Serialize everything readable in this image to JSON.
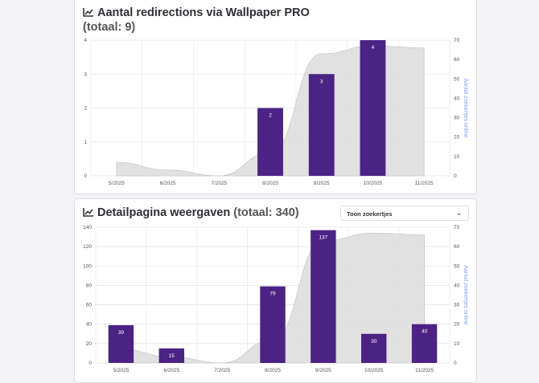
{
  "charts": [
    {
      "title": "Aantal redirections via Wallpaper PRO",
      "subtitle": "(totaal: 9)"
    },
    {
      "title": "Detailpagina weergaven",
      "subtitle": "(totaal: 340)",
      "dropdown_label": "Toon zoekertjes"
    }
  ],
  "chart_data": [
    {
      "type": "bar",
      "title": "Aantal redirections via Wallpaper PRO (totaal: 9)",
      "categories": [
        "5/2025",
        "6/2025",
        "7/2025",
        "8/2025",
        "9/2025",
        "10/2025",
        "11/2025"
      ],
      "values": [
        0,
        0,
        0,
        2,
        3,
        4,
        0
      ],
      "ylim": [
        0,
        4
      ],
      "yticks": [
        0,
        1,
        2,
        3,
        4
      ],
      "y2label": "Aantal zoekertjes online",
      "y2lim": [
        0,
        70
      ],
      "y2ticks": [
        0,
        10,
        20,
        30,
        40,
        50,
        60,
        70
      ],
      "area_series": {
        "name": "Aantal zoekertjes online",
        "values": [
          7,
          3,
          0,
          12,
          63,
          67,
          66
        ]
      },
      "bar_color": "#4c2384",
      "area_color": "#dcdcdc"
    },
    {
      "type": "bar",
      "title": "Detailpagina weergaven (totaal: 340)",
      "categories": [
        "5/2025",
        "6/2025",
        "7/2025",
        "8/2025",
        "9/2025",
        "10/2025",
        "11/2025"
      ],
      "values": [
        39,
        15,
        0,
        79,
        137,
        30,
        40
      ],
      "ylim": [
        0,
        140
      ],
      "yticks": [
        0,
        20,
        40,
        60,
        80,
        100,
        120,
        140
      ],
      "y2label": "Aantal zoekertjes online",
      "y2lim": [
        0,
        70
      ],
      "y2ticks": [
        0,
        10,
        20,
        30,
        40,
        50,
        60,
        70
      ],
      "area_series": {
        "name": "Aantal zoekertjes online",
        "values": [
          7,
          3,
          0,
          12,
          63,
          67,
          66
        ]
      },
      "bar_color": "#4c2384",
      "area_color": "#dcdcdc"
    }
  ]
}
